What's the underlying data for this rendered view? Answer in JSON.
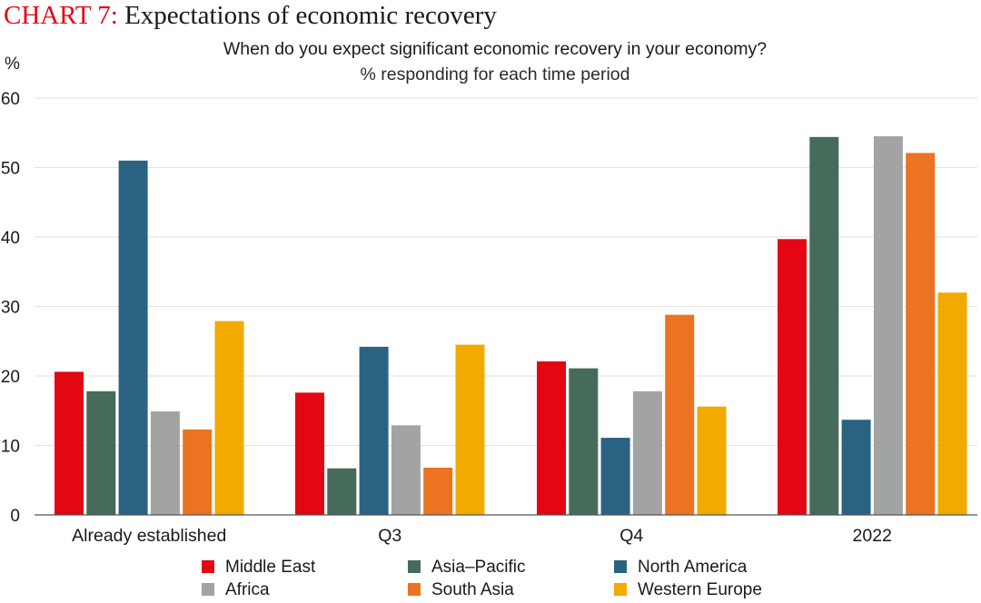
{
  "header": {
    "title_tag": "CHART 7:",
    "title_text": "Expectations of economic recovery",
    "question": "When do you expect significant economic recovery in your economy?",
    "note": "% responding for each time period",
    "unit": "%"
  },
  "chart_data": {
    "type": "bar",
    "title": "When do you expect significant economic recovery in your economy?",
    "subtitle": "% responding for each time period",
    "ylabel": "%",
    "xlabel": "",
    "ylim": [
      0,
      60
    ],
    "yticks": [
      0,
      10,
      20,
      30,
      40,
      50,
      60
    ],
    "grid": true,
    "categories": [
      "Already established",
      "Q3",
      "Q4",
      "2022"
    ],
    "series": [
      {
        "name": "Middle East",
        "color": "#e30613",
        "values": [
          20.6,
          17.6,
          22.1,
          39.7
        ]
      },
      {
        "name": "Asia–Pacific",
        "color": "#466b5a",
        "values": [
          17.8,
          6.7,
          21.1,
          54.4
        ]
      },
      {
        "name": "North America",
        "color": "#2a6381",
        "values": [
          51.0,
          24.2,
          11.1,
          13.7
        ]
      },
      {
        "name": "Africa",
        "color": "#a2a4a3",
        "values": [
          14.9,
          12.9,
          17.8,
          54.5
        ]
      },
      {
        "name": "South Asia",
        "color": "#ec7322",
        "values": [
          12.3,
          6.8,
          28.8,
          52.1
        ]
      },
      {
        "name": "Western Europe",
        "color": "#f3aa00",
        "values": [
          27.9,
          24.5,
          15.6,
          32.0
        ]
      }
    ],
    "legend_position": "bottom"
  }
}
